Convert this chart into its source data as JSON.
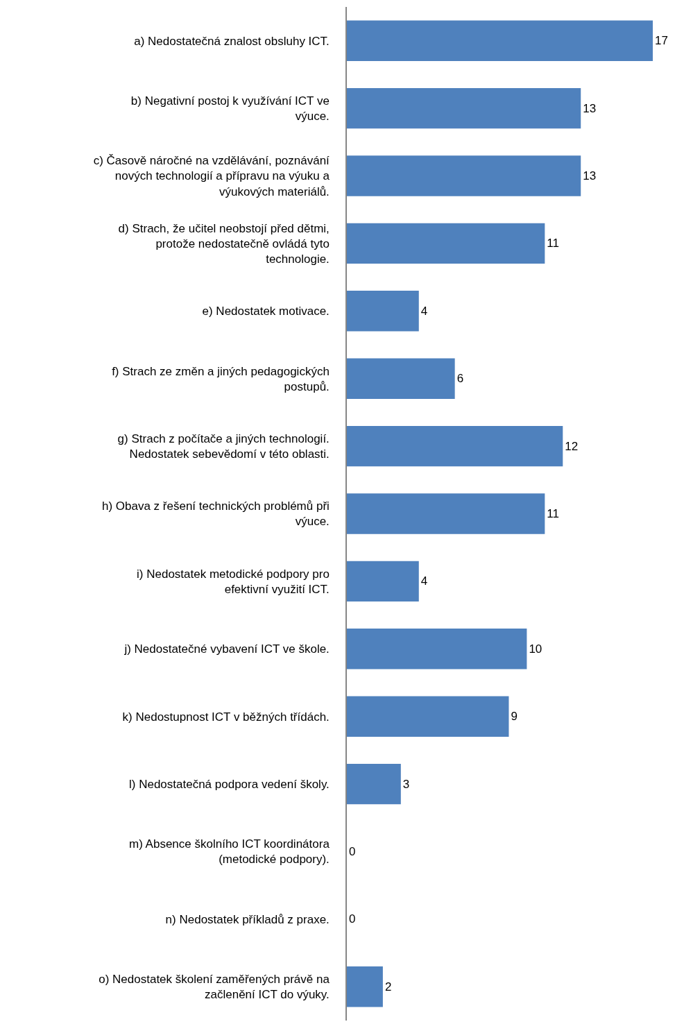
{
  "chart_data": {
    "type": "bar",
    "orientation": "horizontal",
    "data_labels": true,
    "legend": false,
    "tick_labels": "y",
    "categories": [
      "a) Nedostatečná znalost obsluhy ICT.",
      "b) Negativní postoj k využívání ICT ve výuce.",
      "c) Časově náročné na vzdělávání, poznávání nových technologií a přípravu na výuku a výukových materiálů.",
      "d) Strach, že učitel neobstojí před dětmi, protože nedostatečně ovládá tyto technologie.",
      "e) Nedostatek motivace.",
      "f) Strach ze změn a jiných pedagogických postupů.",
      "g) Strach z počítače a jiných technologií. Nedostatek sebevědomí v této oblasti.",
      "h) Obava z řešení technických problémů při výuce.",
      "i) Nedostatek metodické podpory pro efektivní využití ICT.",
      "j) Nedostatečné vybavení ICT ve škole.",
      "k) Nedostupnost ICT v běžných třídách.",
      "l) Nedostatečná podpora vedení školy.",
      "m) Absence školního ICT koordinátora (metodické podpory).",
      "n) Nedostatek příkladů z praxe.",
      "o) Nedostatek školení zaměřených právě na začlenění ICT do výuky."
    ],
    "values": [
      17,
      13,
      13,
      11,
      4,
      6,
      12,
      11,
      4,
      10,
      9,
      3,
      0,
      0,
      2
    ],
    "color": "#4f81bd"
  }
}
